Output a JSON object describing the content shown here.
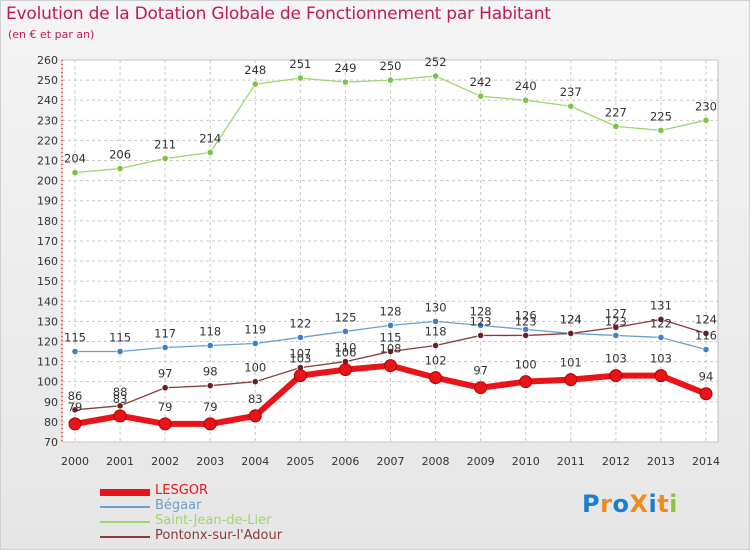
{
  "page": {
    "title": "Evolution de la Dotation Globale de Fonctionnement par Habitant",
    "subtitle": "(en € et par an)"
  },
  "logo": {
    "text": "ProXiti",
    "letters": [
      "P",
      "r",
      "o",
      "X",
      "i",
      "t",
      "i"
    ],
    "colors": [
      "#1a7fd0",
      "#f08a1c",
      "#1a7fd0",
      "#f08a1c",
      "#1a7fd0",
      "#f08a1c",
      "#8cc63f"
    ]
  },
  "chart_data": {
    "type": "line",
    "title": "Evolution de la Dotation Globale de Fonctionnement par Habitant",
    "subtitle": "(en € et par an)",
    "xlabel": "",
    "ylabel": "",
    "ylim": [
      70,
      260
    ],
    "yticks": [
      70,
      80,
      90,
      100,
      110,
      120,
      130,
      140,
      150,
      160,
      170,
      180,
      190,
      200,
      210,
      220,
      230,
      240,
      250,
      260
    ],
    "grid": true,
    "legend_position": "bottom-left",
    "categories": [
      "2000",
      "2001",
      "2002",
      "2003",
      "2004",
      "2005",
      "2006",
      "2007",
      "2008",
      "2009",
      "2010",
      "2011",
      "2012",
      "2013",
      "2014"
    ],
    "series": [
      {
        "name": "LESGOR",
        "color": "#e8141a",
        "marker_color": "#e8141a",
        "values": [
          79,
          83,
          79,
          79,
          83,
          103,
          106,
          108,
          102,
          97,
          100,
          101,
          103,
          103,
          94
        ],
        "labels": [
          "79",
          "83",
          "79",
          "79",
          "83",
          "103",
          "106",
          "108",
          "102",
          "97",
          "100",
          "101",
          "103",
          "103",
          "94"
        ]
      },
      {
        "name": "Bégaar",
        "color": "#6a9fd0",
        "marker_color": "#3f7ec8",
        "values": [
          115,
          115,
          117,
          118,
          119,
          122,
          125,
          128,
          130,
          128,
          126,
          124,
          123,
          122,
          116
        ],
        "labels": [
          "115",
          "115",
          "117",
          "118",
          "119",
          "122",
          "125",
          "128",
          "130",
          "128",
          "126",
          "124",
          "123",
          "122",
          "116"
        ]
      },
      {
        "name": "Saint-Jean-de-Lier",
        "color": "#9ed66b",
        "marker_color": "#7cc34a",
        "values": [
          204,
          206,
          211,
          214,
          248,
          251,
          249,
          250,
          252,
          242,
          240,
          237,
          227,
          225,
          230
        ],
        "labels": [
          "204",
          "206",
          "211",
          "214",
          "248",
          "251",
          "249",
          "250",
          "252",
          "242",
          "240",
          "237",
          "227",
          "225",
          "230"
        ]
      },
      {
        "name": "Pontonx-sur-l'Adour",
        "color": "#8b3a3a",
        "marker_color": "#6e1f1f",
        "values": [
          86,
          88,
          97,
          98,
          100,
          107,
          110,
          115,
          118,
          123,
          123,
          124,
          127,
          131,
          124
        ],
        "labels": [
          "86",
          "88",
          "97",
          "98",
          "100",
          "107",
          "110",
          "115",
          "118",
          "123",
          "123",
          "124",
          "127",
          "131",
          "124"
        ]
      }
    ]
  }
}
